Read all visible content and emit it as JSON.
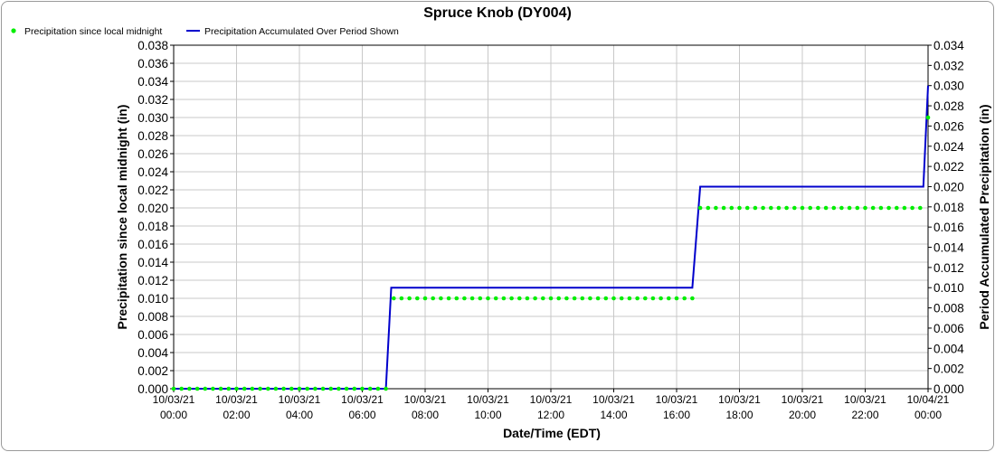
{
  "chart_data": {
    "type": "line",
    "title": "Spruce Knob (DY004)",
    "xlabel": "Date/Time (EDT)",
    "ylabel_left": "Precipitation since local midnight (in)",
    "ylabel_right": "Period Accumulated Precipitation (in)",
    "left_axis": {
      "ylim": [
        0,
        0.038
      ],
      "ticks": [
        "0.000",
        "0.002",
        "0.004",
        "0.006",
        "0.008",
        "0.010",
        "0.012",
        "0.014",
        "0.016",
        "0.018",
        "0.020",
        "0.022",
        "0.024",
        "0.026",
        "0.028",
        "0.030",
        "0.032",
        "0.034",
        "0.036",
        "0.038"
      ]
    },
    "right_axis": {
      "ylim": [
        0,
        0.034
      ],
      "ticks": [
        "0.000",
        "0.002",
        "0.004",
        "0.006",
        "0.008",
        "0.010",
        "0.012",
        "0.014",
        "0.016",
        "0.018",
        "0.020",
        "0.022",
        "0.024",
        "0.026",
        "0.028",
        "0.030",
        "0.032",
        "0.034"
      ]
    },
    "x_axis": {
      "range_hours": [
        0,
        24
      ],
      "ticks": [
        {
          "date": "10/03/21",
          "time": "00:00"
        },
        {
          "date": "10/03/21",
          "time": "02:00"
        },
        {
          "date": "10/03/21",
          "time": "04:00"
        },
        {
          "date": "10/03/21",
          "time": "06:00"
        },
        {
          "date": "10/03/21",
          "time": "08:00"
        },
        {
          "date": "10/03/21",
          "time": "10:00"
        },
        {
          "date": "10/03/21",
          "time": "12:00"
        },
        {
          "date": "10/03/21",
          "time": "14:00"
        },
        {
          "date": "10/03/21",
          "time": "16:00"
        },
        {
          "date": "10/03/21",
          "time": "18:00"
        },
        {
          "date": "10/03/21",
          "time": "20:00"
        },
        {
          "date": "10/03/21",
          "time": "22:00"
        },
        {
          "date": "10/04/21",
          "time": "00:00"
        }
      ]
    },
    "grid": true,
    "legend_position": "top-left",
    "series": [
      {
        "name": "Precipitation since local midnight",
        "style": "dots",
        "axis": "left",
        "color": "#00ee00",
        "interval_minutes": 15,
        "steps": [
          {
            "from_hour": 0,
            "to_hour": 6.75,
            "value": 0.0
          },
          {
            "from_hour": 7.0,
            "to_hour": 16.5,
            "value": 0.01
          },
          {
            "from_hour": 16.75,
            "to_hour": 23.75,
            "value": 0.02
          },
          {
            "from_hour": 24.0,
            "to_hour": 24.0,
            "value": 0.03
          }
        ]
      },
      {
        "name": "Precipitation Accumulated Over Period Shown",
        "style": "line",
        "axis": "right",
        "color": "#0000cc",
        "points": [
          [
            0,
            0.0
          ],
          [
            6.75,
            0.0
          ],
          [
            6.92,
            0.01
          ],
          [
            16.5,
            0.01
          ],
          [
            16.75,
            0.02
          ],
          [
            23.85,
            0.02
          ],
          [
            24.0,
            0.03
          ]
        ]
      }
    ]
  }
}
